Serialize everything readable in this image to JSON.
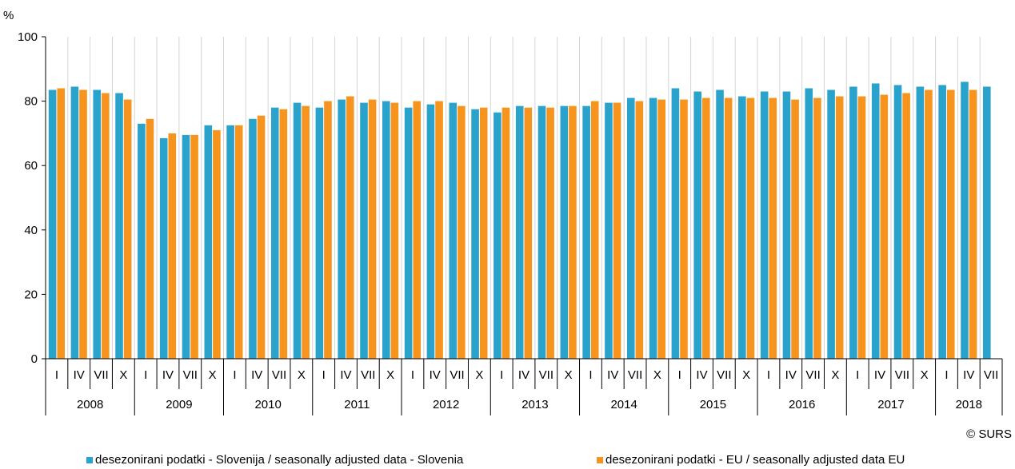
{
  "chart_data": {
    "type": "bar",
    "ylabel": "%",
    "ylim": [
      0,
      100
    ],
    "yticks": [
      0,
      20,
      40,
      60,
      80,
      100
    ],
    "grid": "vertical",
    "legend_position": "bottom",
    "categories": [
      {
        "quarter": "I",
        "year": "2008"
      },
      {
        "quarter": "IV",
        "year": "2008"
      },
      {
        "quarter": "VII",
        "year": "2008"
      },
      {
        "quarter": "X",
        "year": "2008"
      },
      {
        "quarter": "I",
        "year": "2009"
      },
      {
        "quarter": "IV",
        "year": "2009"
      },
      {
        "quarter": "VII",
        "year": "2009"
      },
      {
        "quarter": "X",
        "year": "2009"
      },
      {
        "quarter": "I",
        "year": "2010"
      },
      {
        "quarter": "IV",
        "year": "2010"
      },
      {
        "quarter": "VII",
        "year": "2010"
      },
      {
        "quarter": "X",
        "year": "2010"
      },
      {
        "quarter": "I",
        "year": "2011"
      },
      {
        "quarter": "IV",
        "year": "2011"
      },
      {
        "quarter": "VII",
        "year": "2011"
      },
      {
        "quarter": "X",
        "year": "2011"
      },
      {
        "quarter": "I",
        "year": "2012"
      },
      {
        "quarter": "IV",
        "year": "2012"
      },
      {
        "quarter": "VII",
        "year": "2012"
      },
      {
        "quarter": "X",
        "year": "2012"
      },
      {
        "quarter": "I",
        "year": "2013"
      },
      {
        "quarter": "IV",
        "year": "2013"
      },
      {
        "quarter": "VII",
        "year": "2013"
      },
      {
        "quarter": "X",
        "year": "2013"
      },
      {
        "quarter": "I",
        "year": "2014"
      },
      {
        "quarter": "IV",
        "year": "2014"
      },
      {
        "quarter": "VII",
        "year": "2014"
      },
      {
        "quarter": "X",
        "year": "2014"
      },
      {
        "quarter": "I",
        "year": "2015"
      },
      {
        "quarter": "IV",
        "year": "2015"
      },
      {
        "quarter": "VII",
        "year": "2015"
      },
      {
        "quarter": "X",
        "year": "2015"
      },
      {
        "quarter": "I",
        "year": "2016"
      },
      {
        "quarter": "IV",
        "year": "2016"
      },
      {
        "quarter": "VII",
        "year": "2016"
      },
      {
        "quarter": "X",
        "year": "2016"
      },
      {
        "quarter": "I",
        "year": "2017"
      },
      {
        "quarter": "IV",
        "year": "2017"
      },
      {
        "quarter": "VII",
        "year": "2017"
      },
      {
        "quarter": "X",
        "year": "2017"
      },
      {
        "quarter": "I",
        "year": "2018"
      },
      {
        "quarter": "IV",
        "year": "2018"
      },
      {
        "quarter": "VII",
        "year": "2018"
      }
    ],
    "years": [
      "2008",
      "2009",
      "2010",
      "2011",
      "2012",
      "2013",
      "2014",
      "2015",
      "2016",
      "2017",
      "2018"
    ],
    "series": [
      {
        "name": "desezonirani podatki - Slovenija / seasonally adjusted data - Slovenia",
        "color": "#2aa3cc",
        "values": [
          83.5,
          84.5,
          83.5,
          82.5,
          73,
          68.5,
          69.5,
          72.5,
          72.5,
          74.5,
          78,
          79.5,
          78,
          80.5,
          79.5,
          80,
          78,
          79,
          79.5,
          77.5,
          76.5,
          78.5,
          78.5,
          78.5,
          78.5,
          79.5,
          81,
          81,
          84,
          83,
          83.5,
          81.5,
          83,
          83,
          84,
          83.5,
          84.5,
          85.5,
          85,
          84.5,
          85,
          86,
          84.5
        ]
      },
      {
        "name": "desezonirani podatki - EU / seasonally adjusted data EU",
        "color": "#f7941d",
        "values": [
          84,
          83.5,
          82.5,
          80.5,
          74.5,
          70,
          69.5,
          71,
          72.5,
          75.5,
          77.5,
          78.5,
          80,
          81.5,
          80.5,
          79.5,
          80,
          80,
          78.5,
          78,
          78,
          78,
          78,
          78.5,
          80,
          79.5,
          80,
          80.5,
          80.5,
          81,
          81,
          81,
          81,
          80.5,
          81,
          81.5,
          81.5,
          82,
          82.5,
          83.5,
          83.5,
          83.5,
          null
        ]
      }
    ]
  },
  "credit": "© SURS",
  "legend": {
    "slovenia_label": "desezonirani podatki - Slovenija / seasonally adjusted data - Slovenia",
    "eu_label": "desezonirani podatki - EU / seasonally adjusted data EU"
  }
}
